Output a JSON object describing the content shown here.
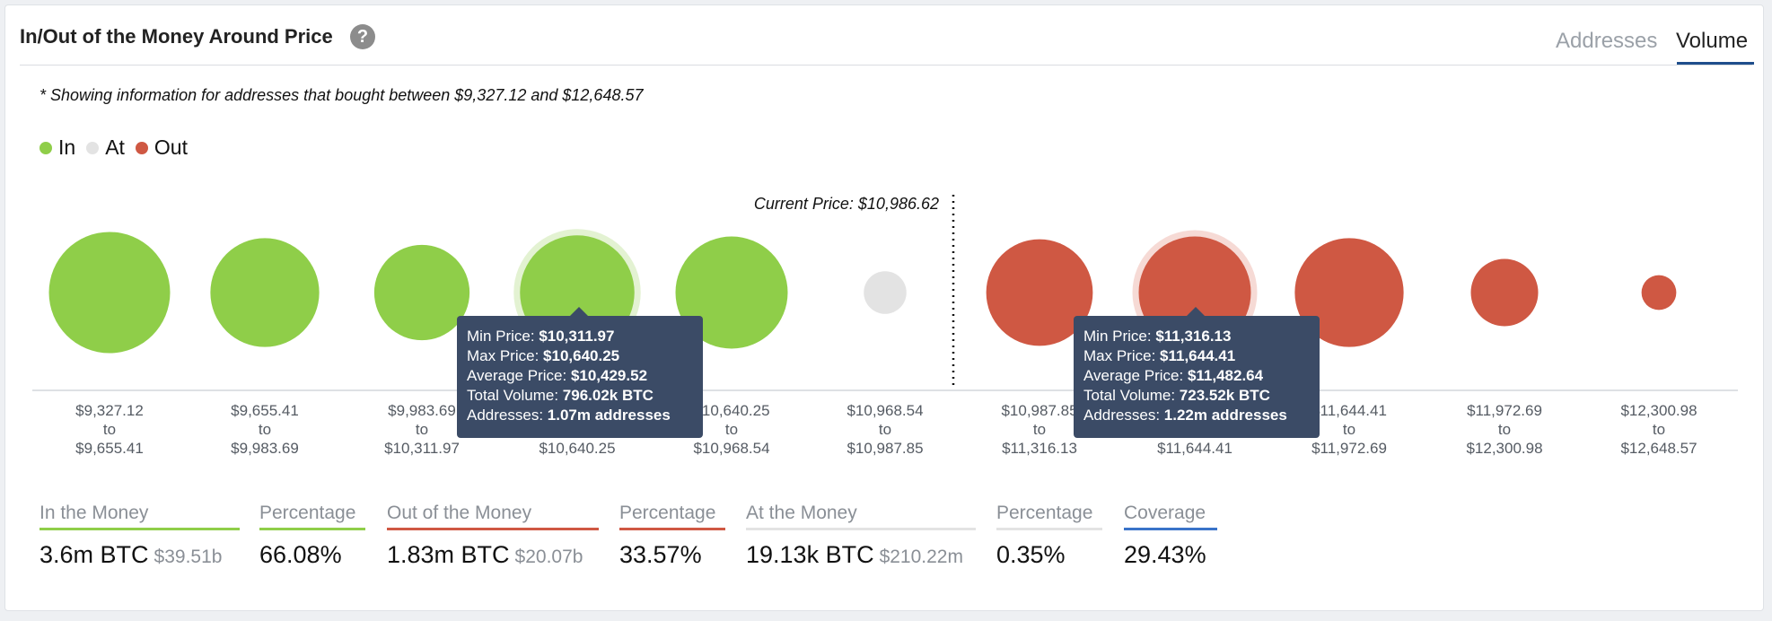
{
  "header": {
    "title": "In/Out of the Money Around Price",
    "help_glyph": "?",
    "tabs": [
      {
        "label": "Addresses",
        "active": false
      },
      {
        "label": "Volume",
        "active": true
      }
    ]
  },
  "note": "* Showing information for addresses that bought between $9,327.12 and $12,648.57",
  "legend": [
    {
      "label": "In",
      "color": "#8fce49"
    },
    {
      "label": "At",
      "color": "#e3e3e3"
    },
    {
      "label": "Out",
      "color": "#cf5843"
    }
  ],
  "chart_data": {
    "type": "scatter",
    "current_price_label": "Current Price: $10,986.62",
    "colors": {
      "in": "#8fce49",
      "at": "#e3e3e3",
      "out": "#cf5843"
    },
    "ranges": [
      {
        "status": "in",
        "from": "$9,327.12",
        "to": "$9,655.41",
        "size": 108
      },
      {
        "status": "in",
        "from": "$9,655.41",
        "to": "$9,983.69",
        "size": 97
      },
      {
        "status": "in",
        "from": "$9,983.69",
        "to": "$10,311.97",
        "size": 85
      },
      {
        "status": "in",
        "from": "$10,311.97",
        "to": "$10,640.25",
        "size": 102,
        "highlighted": true,
        "volume": "796.02k BTC"
      },
      {
        "status": "in",
        "from": "$10,640.25",
        "to": "$10,968.54",
        "size": 100
      },
      {
        "status": "at",
        "from": "$10,968.54",
        "to": "$10,987.85",
        "size": 38
      },
      {
        "status": "out",
        "from": "$10,987.85",
        "to": "$11,316.13",
        "size": 95
      },
      {
        "status": "out",
        "from": "$11,316.13",
        "to": "$11,644.41",
        "size": 100,
        "highlighted": true,
        "volume": "723.52k BTC"
      },
      {
        "status": "out",
        "from": "$11,644.41",
        "to": "$11,972.69",
        "size": 97
      },
      {
        "status": "out",
        "from": "$11,972.69",
        "to": "$12,300.98",
        "size": 60
      },
      {
        "status": "out",
        "from": "$12,300.98",
        "to": "$12,648.57",
        "size": 31
      }
    ],
    "tick_separator": "to"
  },
  "tooltips": [
    {
      "min_label": "Min Price:",
      "min": "$10,311.97",
      "max_label": "Max Price:",
      "max": "$10,640.25",
      "avg_label": "Average Price:",
      "avg": "$10,429.52",
      "vol_label": "Total Volume:",
      "vol": "796.02k BTC",
      "addr_label": "Addresses:",
      "addr": "1.07m addresses"
    },
    {
      "min_label": "Min Price:",
      "min": "$11,316.13",
      "max_label": "Max Price:",
      "max": "$11,644.41",
      "avg_label": "Average Price:",
      "avg": "$11,482.64",
      "vol_label": "Total Volume:",
      "vol": "723.52k BTC",
      "addr_label": "Addresses:",
      "addr": "1.22m addresses"
    }
  ],
  "stats": [
    {
      "label": "In the Money",
      "value": "3.6m BTC",
      "sub": "$39.51b",
      "color": "#8fce49"
    },
    {
      "label": "Percentage",
      "value": "66.08%",
      "sub": "",
      "color": "#8fce49"
    },
    {
      "label": "Out of the Money",
      "value": "1.83m BTC",
      "sub": "$20.07b",
      "color": "#cf5843"
    },
    {
      "label": "Percentage",
      "value": "33.57%",
      "sub": "",
      "color": "#cf5843"
    },
    {
      "label": "At the Money",
      "value": "19.13k BTC",
      "sub": "$210.22m",
      "color": "#e3e3e3"
    },
    {
      "label": "Percentage",
      "value": "0.35%",
      "sub": "",
      "color": "#e3e3e3"
    },
    {
      "label": "Coverage",
      "value": "29.43%",
      "sub": "",
      "color": "#3a73c9"
    }
  ]
}
